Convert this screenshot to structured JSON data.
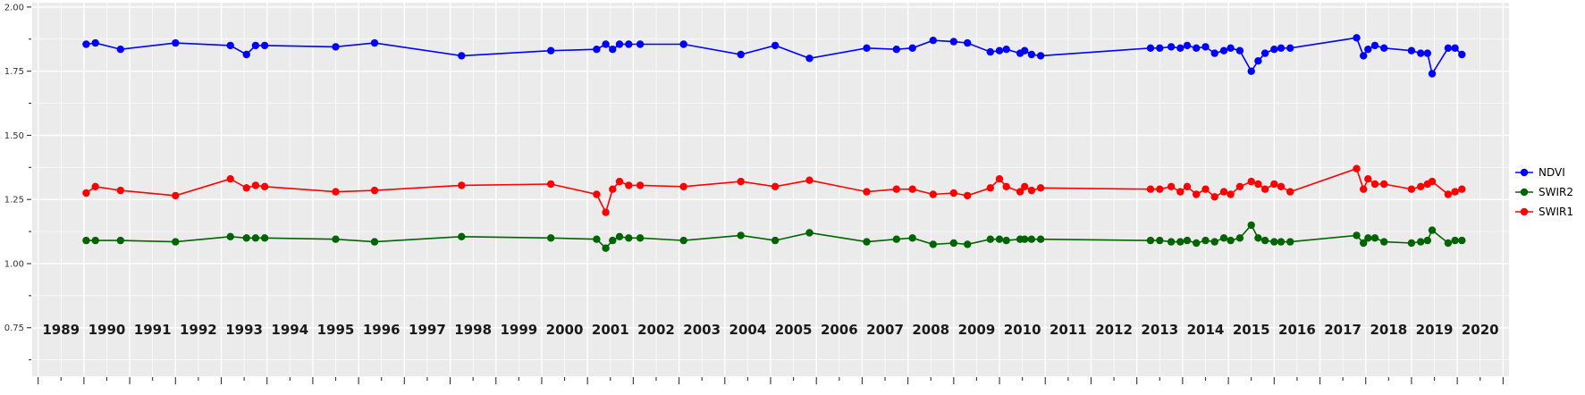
{
  "chart_data": {
    "type": "line",
    "title": "",
    "xlabel": "",
    "ylabel": "",
    "grid": true,
    "xlim": [
      1988.87,
      2021.13
    ],
    "ylim": [
      0.561,
      2.017
    ],
    "x_tick_labels": [
      "1989",
      "1990",
      "1991",
      "1992",
      "1993",
      "1994",
      "1995",
      "1996",
      "1997",
      "1998",
      "1999",
      "2000",
      "2001",
      "2002",
      "2003",
      "2004",
      "2005",
      "2006",
      "2007",
      "2008",
      "2009",
      "2010",
      "2011",
      "2012",
      "2013",
      "2014",
      "2015",
      "2016",
      "2017",
      "2018",
      "2019",
      "2020"
    ],
    "y_ticks": [
      {
        "label": "2.00",
        "value": 2.0
      },
      {
        "label": "1.75",
        "value": 1.75
      },
      {
        "label": "1.50",
        "value": 1.5
      },
      {
        "label": "1.25",
        "value": 1.25
      },
      {
        "label": "1.00",
        "value": 1.0
      },
      {
        "label": "0.75",
        "value": 0.75
      }
    ],
    "y_minor": [
      1.875,
      1.625,
      1.375,
      1.125,
      0.875,
      0.625
    ],
    "x": [
      1990.05,
      1990.25,
      1990.8,
      1992.0,
      1993.2,
      1993.55,
      1993.75,
      1993.95,
      1995.5,
      1996.35,
      1998.25,
      2000.2,
      2001.2,
      2001.4,
      2001.55,
      2001.7,
      2001.9,
      2002.15,
      2003.1,
      2004.35,
      2005.1,
      2005.85,
      2007.1,
      2007.75,
      2008.1,
      2008.55,
      2009.0,
      2009.3,
      2009.8,
      2010.0,
      2010.15,
      2010.45,
      2010.55,
      2010.7,
      2010.9,
      2013.3,
      2013.5,
      2013.75,
      2013.95,
      2014.1,
      2014.3,
      2014.5,
      2014.7,
      2014.9,
      2015.05,
      2015.25,
      2015.5,
      2015.65,
      2015.8,
      2016.0,
      2016.15,
      2016.35,
      2017.8,
      2017.95,
      2018.05,
      2018.2,
      2018.4,
      2019.0,
      2019.2,
      2019.35,
      2019.45,
      2019.8,
      2019.95,
      2020.1
    ],
    "series": [
      {
        "name": "NDVI",
        "color": "#0000FF",
        "values": [
          1.855,
          1.86,
          1.835,
          1.86,
          1.85,
          1.815,
          1.85,
          1.85,
          1.845,
          1.86,
          1.81,
          1.83,
          1.835,
          1.855,
          1.835,
          1.855,
          1.855,
          1.855,
          1.855,
          1.815,
          1.85,
          1.8,
          1.84,
          1.835,
          1.84,
          1.87,
          1.865,
          1.86,
          1.825,
          1.83,
          1.835,
          1.82,
          1.83,
          1.815,
          1.81,
          1.84,
          1.84,
          1.845,
          1.84,
          1.85,
          1.84,
          1.845,
          1.82,
          1.83,
          1.84,
          1.83,
          1.75,
          1.79,
          1.82,
          1.835,
          1.84,
          1.84,
          1.88,
          1.81,
          1.835,
          1.85,
          1.84,
          1.83,
          1.82,
          1.82,
          1.74,
          1.84,
          1.84,
          1.815
        ]
      },
      {
        "name": "SWIR2",
        "color": "#006400",
        "values": [
          1.09,
          1.09,
          1.09,
          1.085,
          1.105,
          1.1,
          1.1,
          1.1,
          1.095,
          1.085,
          1.105,
          1.1,
          1.095,
          1.06,
          1.09,
          1.105,
          1.1,
          1.1,
          1.09,
          1.11,
          1.09,
          1.12,
          1.085,
          1.095,
          1.1,
          1.075,
          1.08,
          1.075,
          1.095,
          1.095,
          1.09,
          1.095,
          1.095,
          1.095,
          1.095,
          1.09,
          1.09,
          1.085,
          1.085,
          1.09,
          1.08,
          1.09,
          1.085,
          1.1,
          1.09,
          1.1,
          1.15,
          1.1,
          1.09,
          1.085,
          1.085,
          1.085,
          1.11,
          1.08,
          1.1,
          1.1,
          1.085,
          1.08,
          1.085,
          1.09,
          1.13,
          1.08,
          1.09,
          1.09
        ]
      },
      {
        "name": "SWIR1",
        "color": "#FF0000",
        "values": [
          1.275,
          1.3,
          1.285,
          1.265,
          1.33,
          1.295,
          1.305,
          1.3,
          1.28,
          1.285,
          1.305,
          1.31,
          1.27,
          1.2,
          1.29,
          1.32,
          1.305,
          1.305,
          1.3,
          1.32,
          1.3,
          1.325,
          1.28,
          1.29,
          1.29,
          1.27,
          1.275,
          1.265,
          1.295,
          1.33,
          1.3,
          1.28,
          1.3,
          1.285,
          1.295,
          1.29,
          1.29,
          1.3,
          1.28,
          1.3,
          1.27,
          1.29,
          1.26,
          1.28,
          1.27,
          1.3,
          1.32,
          1.31,
          1.29,
          1.31,
          1.3,
          1.28,
          1.37,
          1.29,
          1.33,
          1.31,
          1.31,
          1.29,
          1.3,
          1.31,
          1.32,
          1.27,
          1.28,
          1.29
        ]
      }
    ],
    "legend": {
      "position": "right",
      "entries": [
        "NDVI",
        "SWIR2",
        "SWIR1"
      ]
    },
    "style": {
      "panel_background": "#EBEBEB",
      "grid_color": "#FFFFFF",
      "tick_color": "#333333",
      "x_label_color": "#1A1A1A",
      "y_label_color": "#333333"
    }
  }
}
